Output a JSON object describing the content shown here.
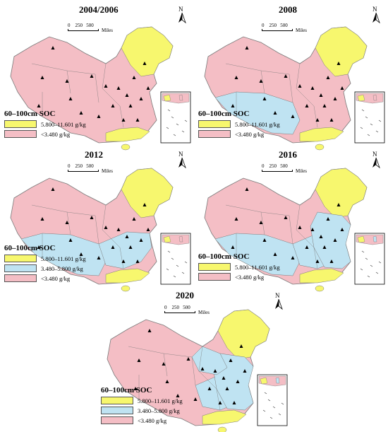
{
  "colors": {
    "high": "#f7f76e",
    "mid": "#bfe3f2",
    "low": "#f4bec5",
    "border": "#7a7a7a"
  },
  "common": {
    "scale_ticks": [
      "0",
      "250",
      "500"
    ],
    "scale_unit": "Miles",
    "north_label": "N",
    "legend_title": "60–100cm SOC"
  },
  "classes": {
    "high": "5.800–11.601 g/kg",
    "mid": "3.480–5.800 g/kg",
    "low": "<3.480 g/kg"
  },
  "panels": [
    {
      "year": "2004/2006",
      "legend": [
        "high",
        "low"
      ]
    },
    {
      "year": "2008",
      "legend": [
        "high",
        "low"
      ]
    },
    {
      "year": "2012",
      "legend": [
        "high",
        "mid",
        "low"
      ]
    },
    {
      "year": "2016",
      "legend": [
        "high",
        "low"
      ]
    },
    {
      "year": "2020",
      "legend": [
        "high",
        "mid",
        "low"
      ]
    }
  ]
}
